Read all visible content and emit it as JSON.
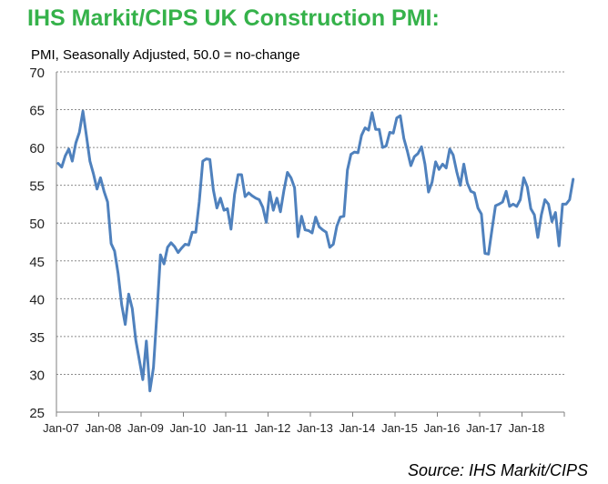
{
  "chart_data": {
    "type": "line",
    "title": "IHS Markit/CIPS UK Construction PMI:",
    "subtitle": "PMI, Seasonally Adjusted,  50.0 = no-change",
    "source": "Source: IHS Markit/CIPS",
    "ylim": [
      25,
      70
    ],
    "y_ticks": [
      25,
      30,
      35,
      40,
      45,
      50,
      55,
      60,
      65,
      70
    ],
    "x_ticks": [
      "Jan-07",
      "Jan-08",
      "Jan-09",
      "Jan-10",
      "Jan-11",
      "Jan-12",
      "Jan-13",
      "Jan-14",
      "Jan-15",
      "Jan-16",
      "Jan-17",
      "Jan-18"
    ],
    "grid": true,
    "line_color": "#4f81bd",
    "title_color": "#35b24a",
    "series": [
      {
        "start": "Jan-07",
        "frequency": "monthly",
        "values": [
          57.9,
          57.4,
          58.9,
          59.8,
          58.2,
          60.6,
          62.0,
          64.8,
          61.6,
          58.2,
          56.5,
          54.5,
          56.0,
          54.2,
          52.8,
          47.3,
          46.3,
          43.3,
          39.2,
          36.6,
          40.6,
          38.7,
          34.5,
          31.9,
          29.3,
          34.4,
          27.8,
          30.9,
          38.0,
          45.8,
          44.6,
          46.8,
          47.4,
          46.9,
          46.1,
          46.7,
          47.2,
          47.1,
          48.8,
          48.8,
          52.8,
          58.2,
          58.5,
          58.4,
          54.4,
          52.0,
          53.3,
          51.7,
          51.9,
          49.2,
          53.8,
          56.4,
          56.4,
          53.5,
          54.0,
          53.6,
          53.3,
          53.1,
          52.1,
          50.1,
          54.1,
          51.7,
          53.3,
          51.5,
          54.3,
          56.7,
          56.0,
          54.7,
          48.2,
          50.9,
          49.1,
          49.0,
          48.7,
          50.8,
          49.5,
          49.1,
          48.8,
          46.8,
          47.2,
          49.6,
          50.8,
          50.9,
          57.0,
          59.1,
          59.4,
          59.3,
          61.6,
          62.6,
          62.3,
          64.6,
          62.4,
          62.4,
          60.0,
          60.2,
          62.0,
          61.9,
          63.9,
          64.2,
          61.2,
          59.5,
          57.6,
          58.8,
          59.2,
          60.1,
          57.8,
          54.1,
          55.4,
          58.1,
          57.1,
          57.8,
          57.3,
          59.8,
          59.0,
          56.8,
          55.0,
          57.8,
          55.3,
          54.2,
          54.0,
          52.0,
          51.2,
          46.0,
          45.9,
          49.2,
          52.3,
          52.5,
          52.8,
          54.2,
          52.2,
          52.5,
          52.2,
          53.1,
          56.0,
          54.8,
          51.9,
          51.1,
          48.1,
          51.1,
          53.1,
          52.5,
          50.2,
          51.4,
          47.0,
          52.5,
          52.5,
          53.1,
          55.8
        ]
      }
    ]
  }
}
